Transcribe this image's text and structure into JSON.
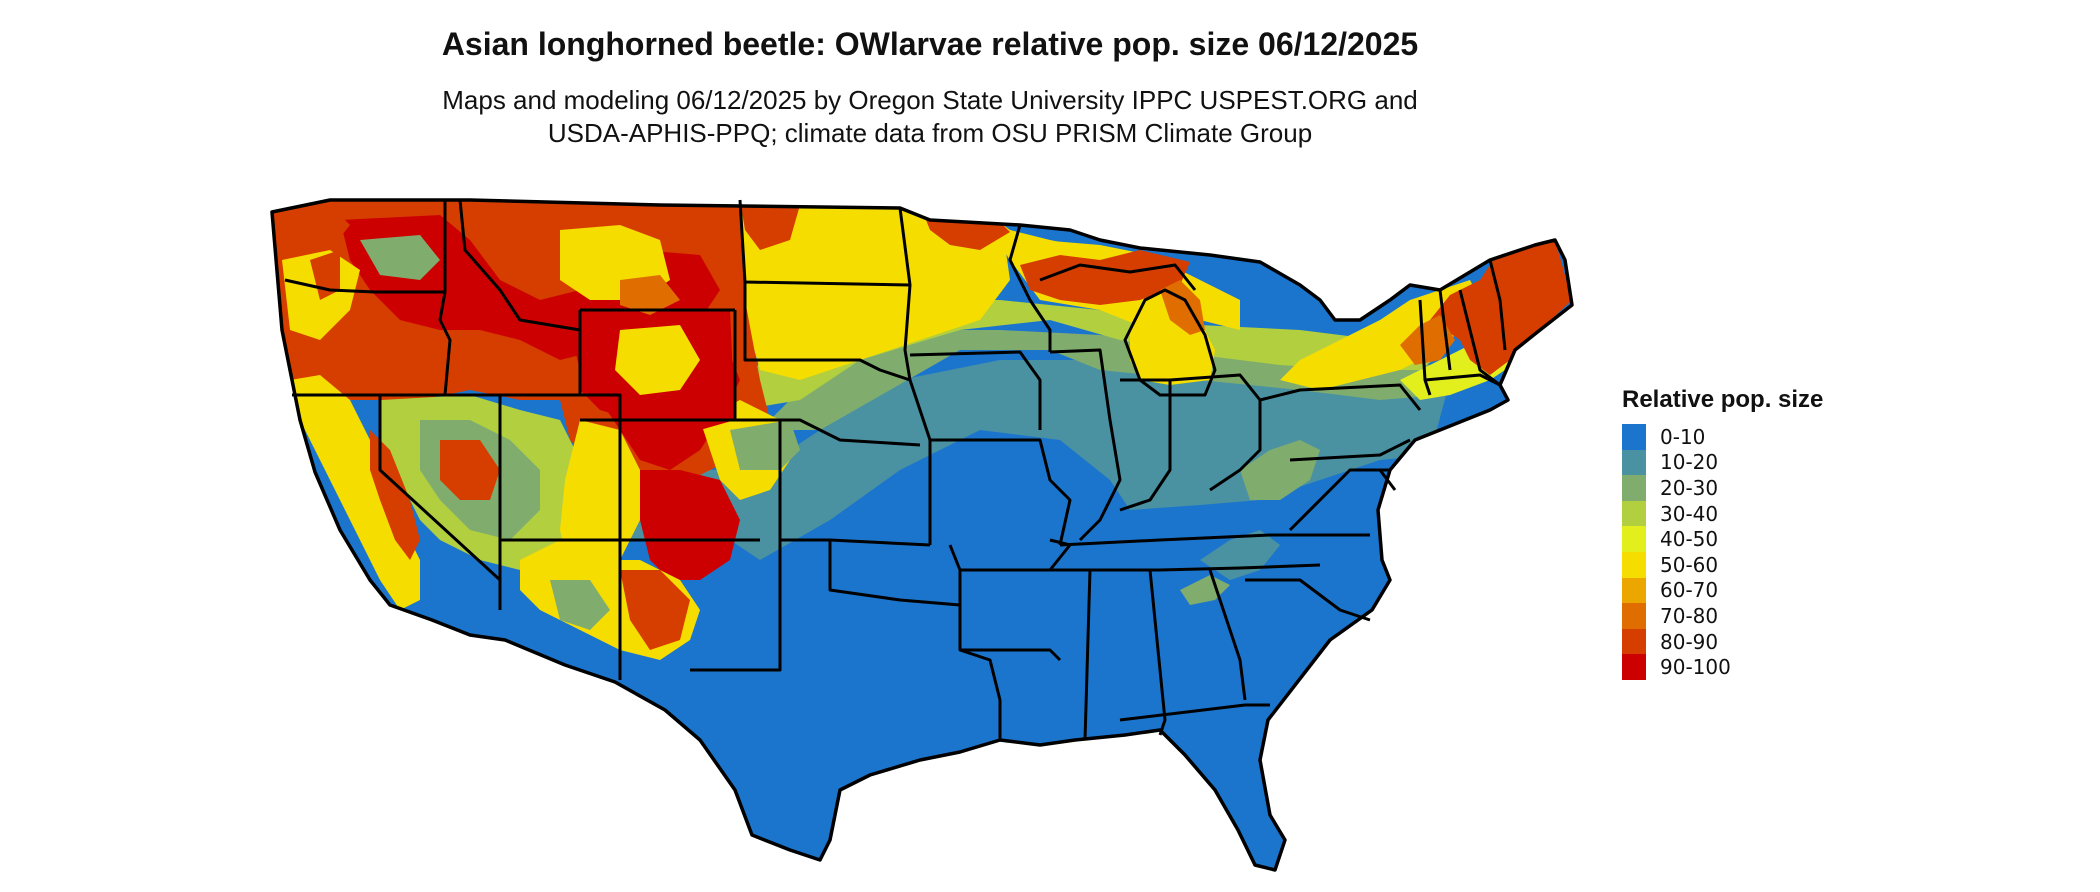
{
  "header": {
    "title": "Asian longhorned beetle: OWlarvae relative pop. size 06/12/2025",
    "subtitle_line1": "Maps and modeling 06/12/2025 by Oregon State University IPPC USPEST.ORG and",
    "subtitle_line2": "USDA-APHIS-PPQ; climate data from OSU PRISM Climate Group"
  },
  "legend": {
    "title": "Relative pop. size",
    "items": [
      {
        "label": "0-10",
        "color": "#1c75cc"
      },
      {
        "label": "10-20",
        "color": "#4a92a2"
      },
      {
        "label": "20-30",
        "color": "#80ad6e"
      },
      {
        "label": "30-40",
        "color": "#b2cf3f"
      },
      {
        "label": "40-50",
        "color": "#e2ef1c"
      },
      {
        "label": "50-60",
        "color": "#f6dd00"
      },
      {
        "label": "60-70",
        "color": "#eba600"
      },
      {
        "label": "70-80",
        "color": "#e06d00"
      },
      {
        "label": "80-90",
        "color": "#d63e00"
      },
      {
        "label": "90-100",
        "color": "#cc0000"
      }
    ]
  }
}
